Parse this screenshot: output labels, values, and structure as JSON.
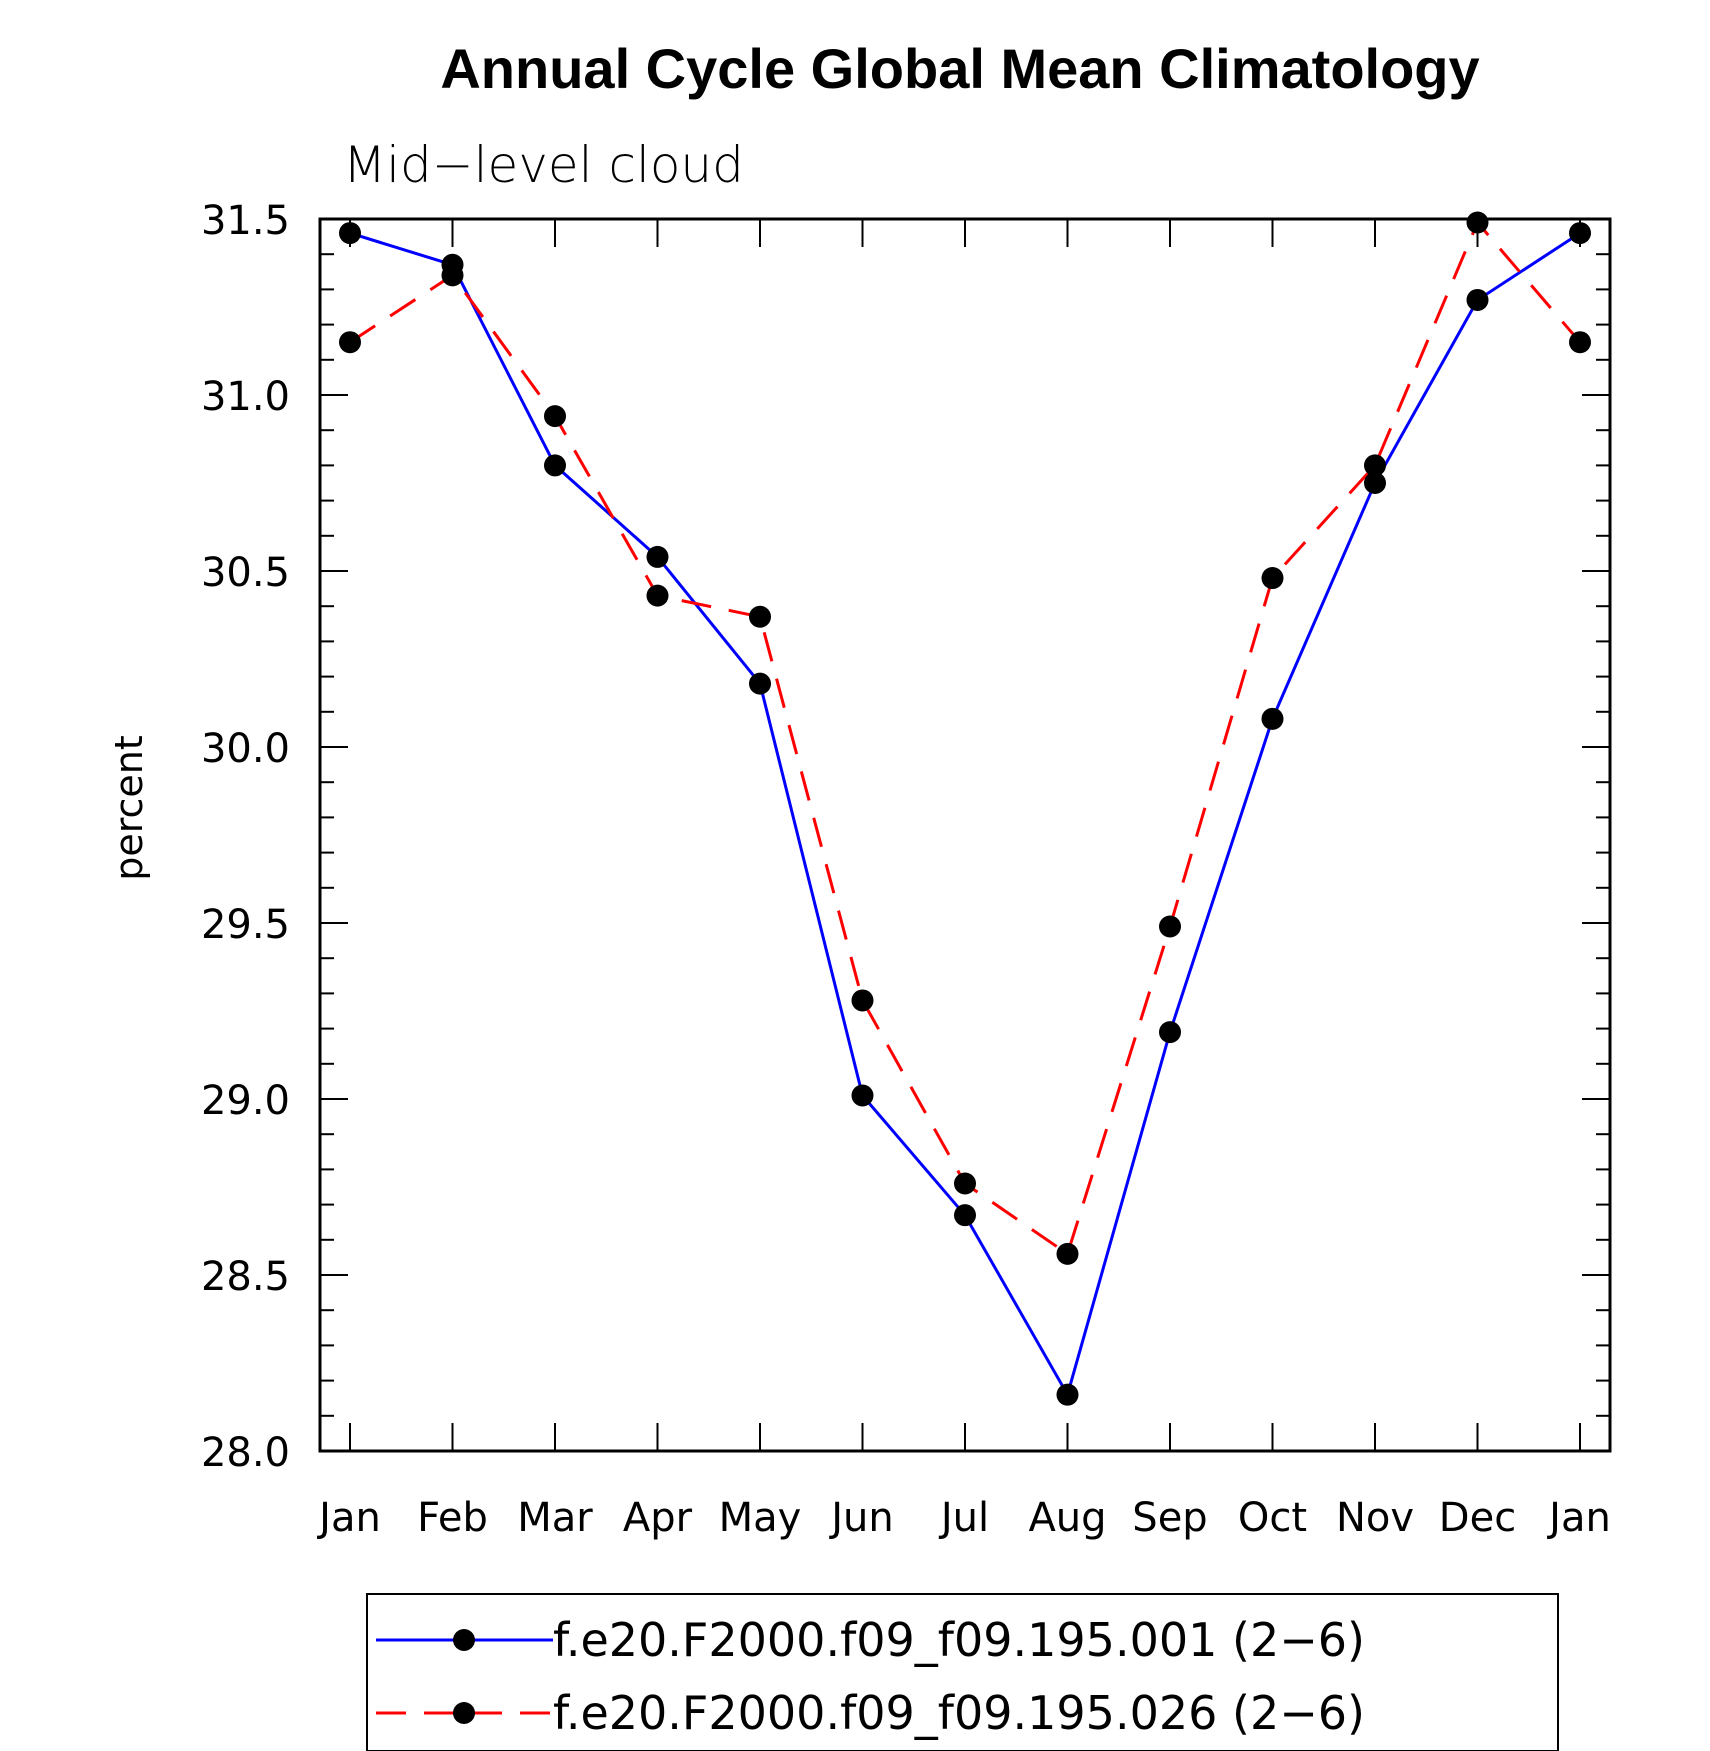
{
  "chart_data": {
    "type": "line",
    "title": "Annual Cycle Global Mean Climatology",
    "subtitle": "Mid−level cloud",
    "ylabel": "percent",
    "xlabel": "",
    "categories": [
      "Jan",
      "Feb",
      "Mar",
      "Apr",
      "May",
      "Jun",
      "Jul",
      "Aug",
      "Sep",
      "Oct",
      "Nov",
      "Dec",
      "Jan"
    ],
    "ylim": [
      28.0,
      31.5
    ],
    "yticks": [
      "28.0",
      "28.5",
      "29.0",
      "29.5",
      "30.0",
      "30.5",
      "31.0",
      "31.5"
    ],
    "legend_position": "bottom",
    "series": [
      {
        "name": "f.e20.F2000.f09_f09.195.001 (2−6)",
        "color": "#0000ff",
        "style": "solid",
        "values": [
          31.46,
          31.37,
          30.8,
          30.54,
          30.18,
          29.01,
          28.67,
          28.16,
          29.19,
          30.08,
          30.75,
          31.27,
          31.46
        ]
      },
      {
        "name": "f.e20.F2000.f09_f09.195.026 (2−6)",
        "color": "#ff0000",
        "style": "dashed",
        "values": [
          31.15,
          31.34,
          30.94,
          30.43,
          30.37,
          29.28,
          28.76,
          28.56,
          29.49,
          30.48,
          30.8,
          31.49,
          31.15
        ]
      }
    ]
  }
}
